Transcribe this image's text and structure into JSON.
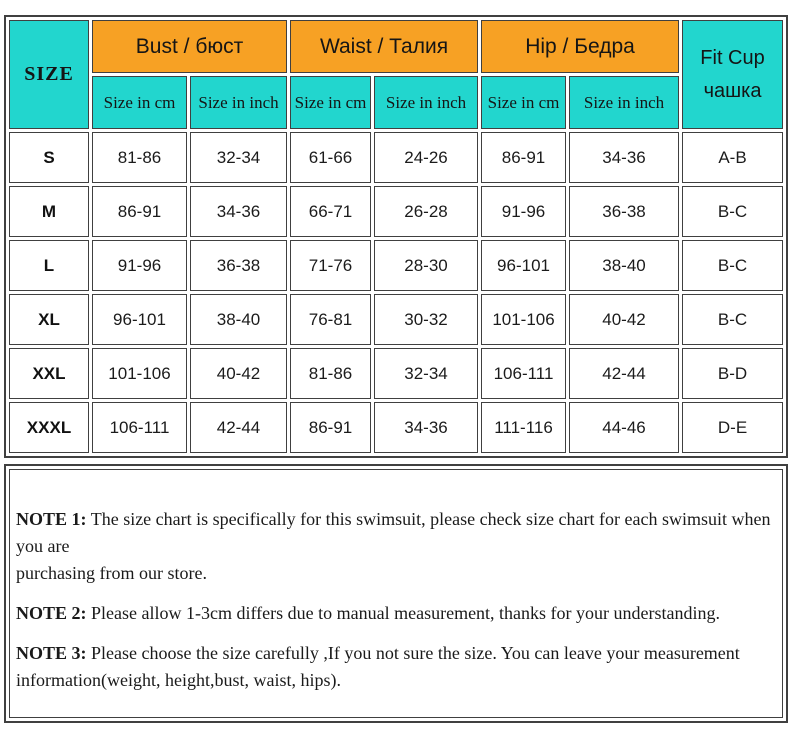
{
  "colors": {
    "cyan": "#22D6CE",
    "orange": "#F7A124",
    "border": "#404040",
    "text": "#151515"
  },
  "table": {
    "size_header": "SIZE",
    "groups": [
      {
        "label": "Bust / бюст"
      },
      {
        "label": "Waist / Талия"
      },
      {
        "label": "Hip / Бедра"
      }
    ],
    "fit_cup": {
      "line1": "Fit Cup",
      "line2": "чашка"
    },
    "subheaders": [
      "Size in cm",
      "Size in inch",
      "Size in cm",
      "Size in inch",
      "Size in cm",
      "Size in inch"
    ],
    "rows": [
      {
        "size": "S",
        "values": [
          "81-86",
          "32-34",
          "61-66",
          "24-26",
          "86-91",
          "34-36"
        ],
        "cup": "A-B"
      },
      {
        "size": "M",
        "values": [
          "86-91",
          "34-36",
          "66-71",
          "26-28",
          "91-96",
          "36-38"
        ],
        "cup": "B-C"
      },
      {
        "size": "L",
        "values": [
          "91-96",
          "36-38",
          "71-76",
          "28-30",
          "96-101",
          "38-40"
        ],
        "cup": "B-C"
      },
      {
        "size": "XL",
        "values": [
          "96-101",
          "38-40",
          "76-81",
          "30-32",
          "101-106",
          "40-42"
        ],
        "cup": "B-C"
      },
      {
        "size": "XXL",
        "values": [
          "101-106",
          "40-42",
          "81-86",
          "32-34",
          "106-111",
          "42-44"
        ],
        "cup": "B-D"
      },
      {
        "size": "XXXL",
        "values": [
          "106-111",
          "42-44",
          "86-91",
          "34-36",
          "111-116",
          "44-46"
        ],
        "cup": "D-E"
      }
    ]
  },
  "notes": [
    {
      "label": "NOTE 1:",
      "lines": [
        "The size chart is specifically for this swimsuit, please check size chart for each swimsuit when you are",
        "purchasing from our store."
      ]
    },
    {
      "label": "NOTE 2:",
      "lines": [
        "Please allow 1-3cm differs due to manual measurement, thanks for your understanding."
      ]
    },
    {
      "label": "NOTE 3:",
      "lines": [
        "Please choose the size carefully ,If you not sure the size. You can leave your measurement",
        "information(weight, height,bust, waist, hips)."
      ]
    }
  ]
}
